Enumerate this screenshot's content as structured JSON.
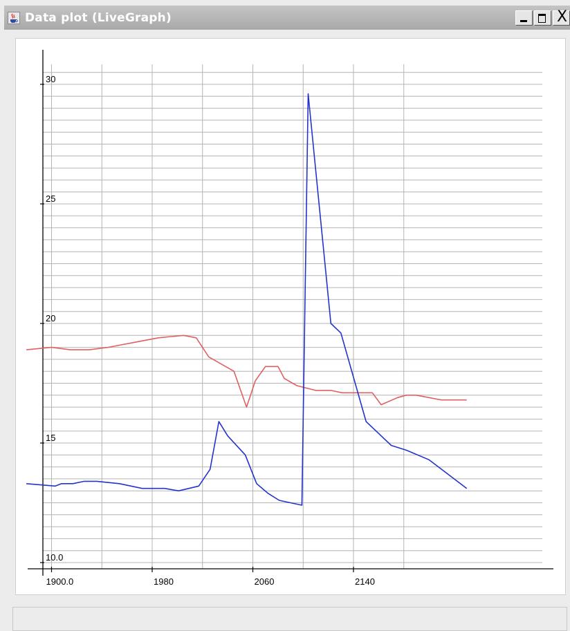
{
  "window": {
    "title": "Data plot (LiveGraph)",
    "icons": {
      "app": "java-cup-icon",
      "minimize": "minimize-icon",
      "maximize": "maximize-icon",
      "close": "close-icon"
    },
    "close_glyph": "X"
  },
  "colors": {
    "grid": "#b4b4b4",
    "axis": "#000000",
    "series_red": "#e06060",
    "series_blue": "#2233cc"
  },
  "chart_data": {
    "type": "line",
    "title": "",
    "xlabel": "",
    "ylabel": "",
    "xlim": [
      1880,
      2230
    ],
    "ylim": [
      10.0,
      31.5
    ],
    "grid": true,
    "x_ticks": [
      1900,
      1980,
      2060,
      2140
    ],
    "x_tick_labels": [
      "1900.0",
      "1980",
      "2060",
      "2140"
    ],
    "y_ticks": [
      10,
      15,
      20,
      25,
      30
    ],
    "y_tick_labels": [
      "10.0",
      "15",
      "20",
      "25",
      "30"
    ],
    "series": [
      {
        "color": "red",
        "x": [
          1880,
          1900,
          1915,
          1930,
          1945,
          1955,
          1965,
          1975,
          1985,
          1995,
          2005,
          2015,
          2025,
          2035,
          2045,
          2055,
          2062,
          2070,
          2080,
          2085,
          2095,
          2110,
          2122,
          2131,
          2140,
          2155,
          2162,
          2175,
          2182,
          2190,
          2210,
          2230
        ],
        "y": [
          18.9,
          19.0,
          18.9,
          18.9,
          19.0,
          19.1,
          19.2,
          19.3,
          19.4,
          19.45,
          19.5,
          19.4,
          18.6,
          18.3,
          18.0,
          16.5,
          17.6,
          18.2,
          18.2,
          17.7,
          17.4,
          17.2,
          17.2,
          17.1,
          17.1,
          17.1,
          16.6,
          16.9,
          17.0,
          17.0,
          16.8,
          16.8
        ]
      },
      {
        "color": "blue",
        "x": [
          1880,
          1903,
          1908,
          1917,
          1926,
          1936,
          1954,
          1972,
          1990,
          2001,
          2017,
          2026,
          2033,
          2040,
          2054,
          2063,
          2072,
          2081,
          2099,
          2104,
          2122,
          2130,
          2150,
          2170,
          2182,
          2200,
          2230
        ],
        "y": [
          13.3,
          13.2,
          13.3,
          13.3,
          13.4,
          13.4,
          13.3,
          13.1,
          13.1,
          13.0,
          13.2,
          13.9,
          15.9,
          15.3,
          14.5,
          13.3,
          12.9,
          12.6,
          12.4,
          29.6,
          20.0,
          19.6,
          15.9,
          14.9,
          14.7,
          14.3,
          13.1
        ]
      }
    ]
  }
}
